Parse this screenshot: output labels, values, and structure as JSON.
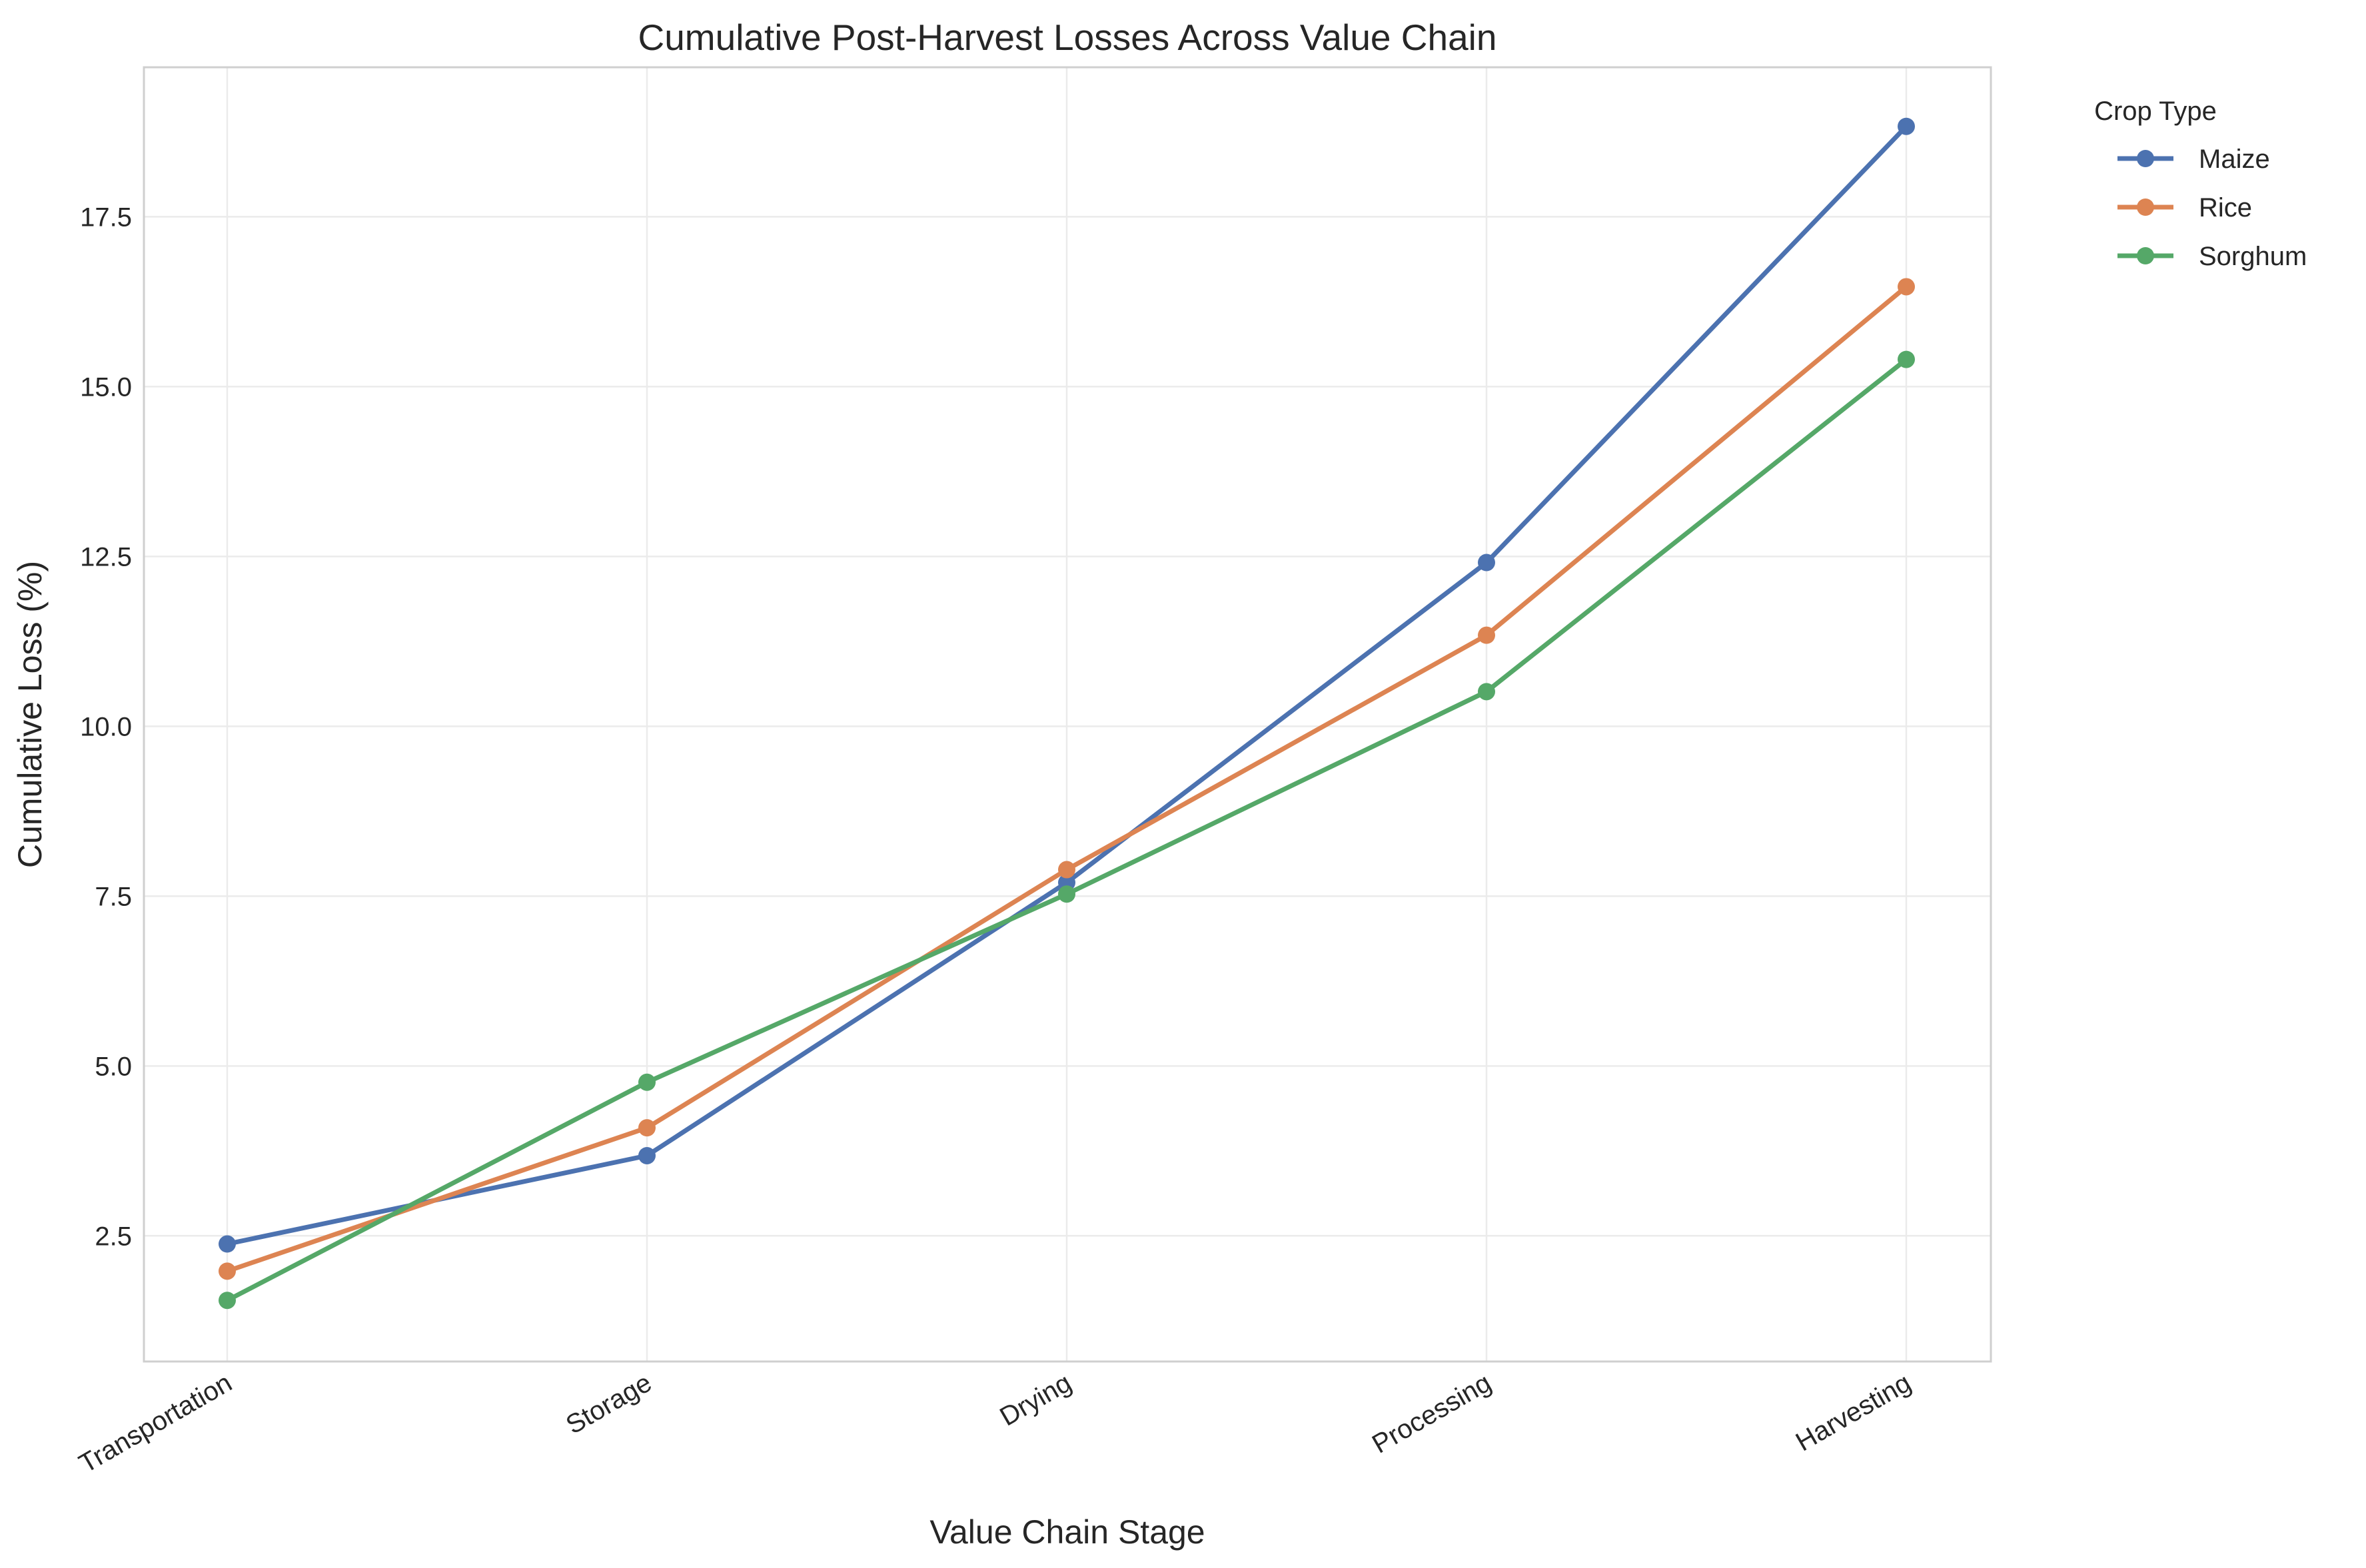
{
  "chart_data": {
    "type": "line",
    "title": "Cumulative Post-Harvest Losses Across Value Chain",
    "xlabel": "Value Chain Stage",
    "ylabel": "Cumulative Loss (%)",
    "categories": [
      "Transportation",
      "Storage",
      "Drying",
      "Processing",
      "Harvesting"
    ],
    "ylim": [
      0.65,
      19.7
    ],
    "yticks": [
      2.5,
      5.0,
      7.5,
      10.0,
      12.5,
      15.0,
      17.5
    ],
    "ytick_labels": [
      "2.5",
      "5.0",
      "7.5",
      "10.0",
      "12.5",
      "15.0",
      "17.5"
    ],
    "grid": true,
    "legend": {
      "title": "Crop Type",
      "placement": "outside upper right"
    },
    "series": [
      {
        "name": "Maize",
        "color": "#4c72b0",
        "values": [
          2.38,
          3.68,
          7.7,
          12.41,
          18.83
        ]
      },
      {
        "name": "Rice",
        "color": "#dd8452",
        "values": [
          1.98,
          4.09,
          7.89,
          11.34,
          16.47
        ]
      },
      {
        "name": "Sorghum",
        "color": "#55a868",
        "values": [
          1.55,
          4.76,
          7.53,
          10.51,
          15.4
        ]
      }
    ],
    "marker": "circle"
  }
}
